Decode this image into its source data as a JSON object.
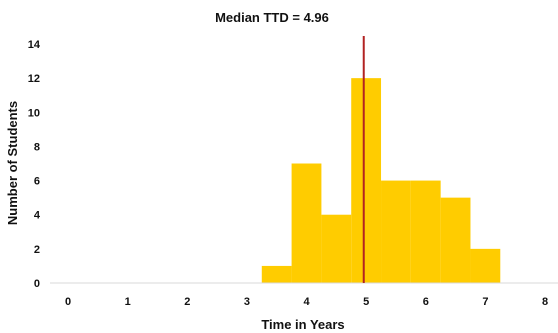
{
  "chart_data": {
    "type": "bar",
    "title": "Median TTD = 4.96",
    "xlabel": "Time in Years",
    "ylabel": "Number of Students",
    "xlim": [
      0,
      8
    ],
    "ylim": [
      0,
      14
    ],
    "x_ticks": [
      "0",
      "1",
      "2",
      "3",
      "4",
      "5",
      "6",
      "7",
      "8"
    ],
    "y_ticks": [
      "0",
      "2",
      "4",
      "6",
      "8",
      "10",
      "12",
      "14"
    ],
    "bin_width": 0.5,
    "bins": [
      {
        "start": 3.25,
        "end": 3.75,
        "value": 1
      },
      {
        "start": 3.75,
        "end": 4.25,
        "value": 7
      },
      {
        "start": 4.25,
        "end": 4.75,
        "value": 4
      },
      {
        "start": 4.75,
        "end": 5.25,
        "value": 12
      },
      {
        "start": 5.25,
        "end": 5.75,
        "value": 6
      },
      {
        "start": 5.75,
        "end": 6.25,
        "value": 6
      },
      {
        "start": 6.25,
        "end": 6.75,
        "value": 5
      },
      {
        "start": 6.75,
        "end": 7.25,
        "value": 2
      }
    ],
    "median_line": {
      "x": 4.96
    },
    "grid": false,
    "legend": "none",
    "colors": {
      "bars": "#FFCC00",
      "median": "#B22222",
      "axis": "#D9D9D9"
    }
  }
}
